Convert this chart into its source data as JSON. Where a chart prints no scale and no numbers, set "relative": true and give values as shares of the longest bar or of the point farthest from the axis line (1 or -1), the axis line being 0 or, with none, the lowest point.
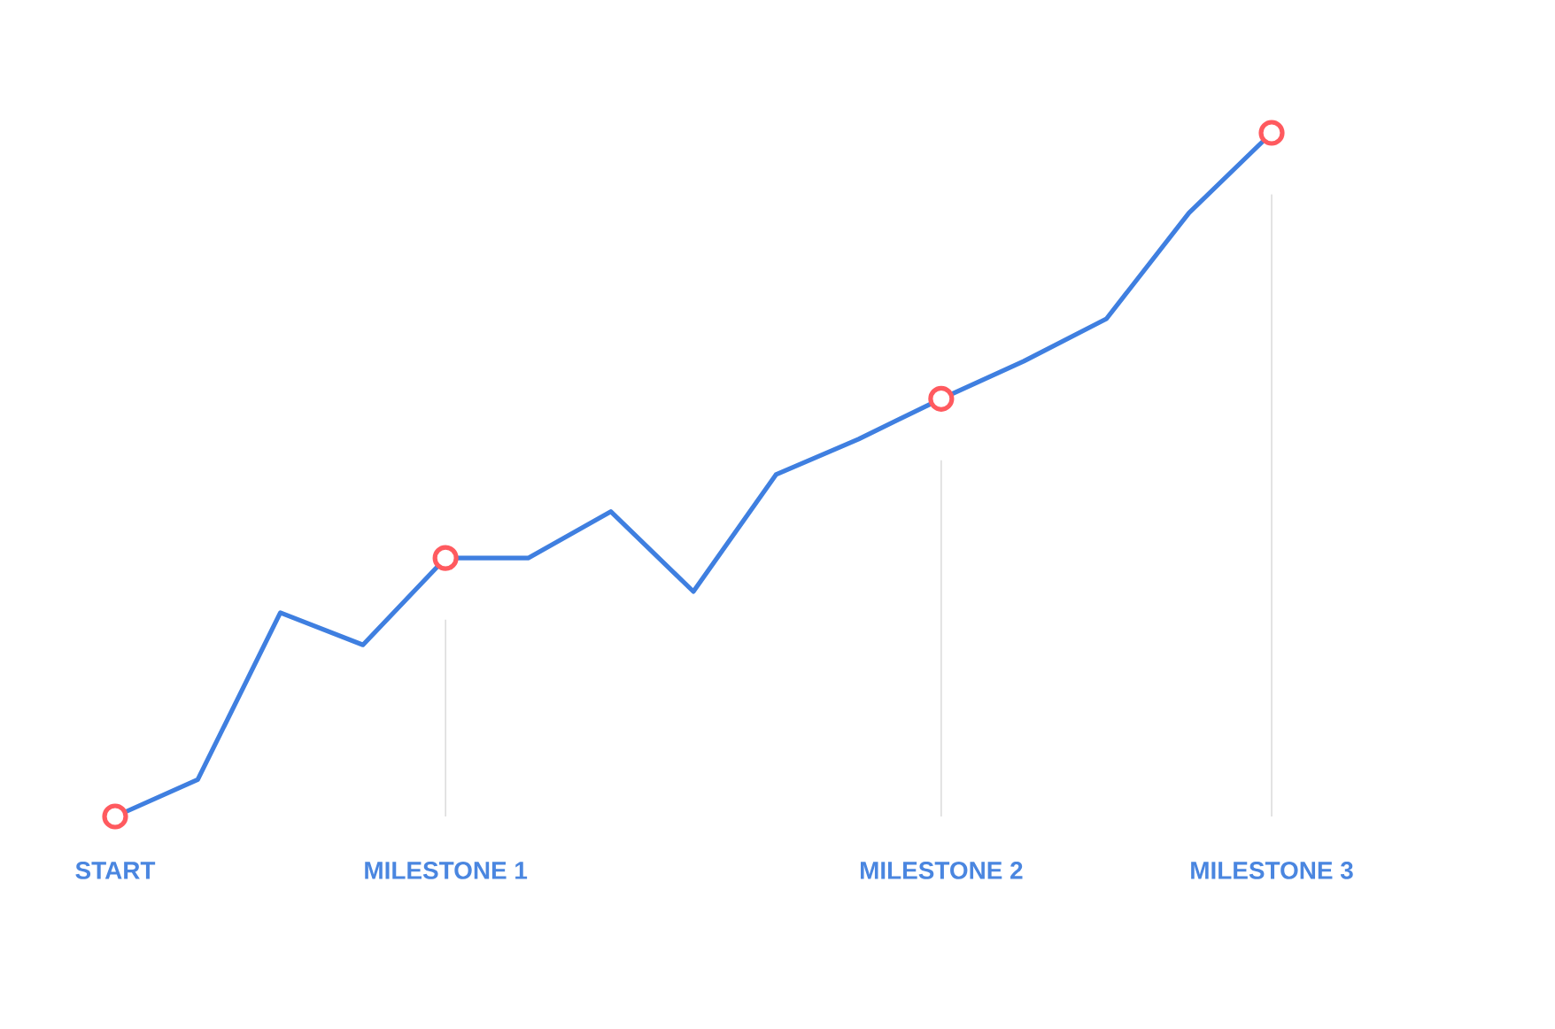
{
  "chart_data": {
    "type": "line",
    "relative": true,
    "categories": [
      "START",
      null,
      null,
      null,
      "MILESTONE 1",
      null,
      null,
      null,
      null,
      null,
      "MILESTONE 2",
      null,
      null,
      null,
      "MILESTONE 3"
    ],
    "series": [
      {
        "color": "#3f7fe0",
        "marker": "none",
        "values": [
          0,
          0.054,
          0.298,
          0.251,
          0.378,
          0.378,
          0.446,
          0.329,
          0.5,
          0.552,
          0.611,
          0.666,
          0.728,
          0.883,
          1
        ]
      },
      {
        "type": "scatter",
        "color": "#ff5a5f",
        "marker": "circle",
        "values": [
          0,
          null,
          null,
          null,
          0.378,
          null,
          null,
          null,
          null,
          null,
          0.611,
          null,
          null,
          null,
          1
        ]
      }
    ],
    "ref_lines": [
      {
        "axis": "x",
        "value": "MILESTONE 1",
        "color": "#dddddd"
      },
      {
        "axis": "x",
        "value": "MILESTONE 2",
        "color": "#dddddd"
      },
      {
        "axis": "x",
        "value": "MILESTONE 3",
        "color": "#dddddd"
      }
    ]
  }
}
